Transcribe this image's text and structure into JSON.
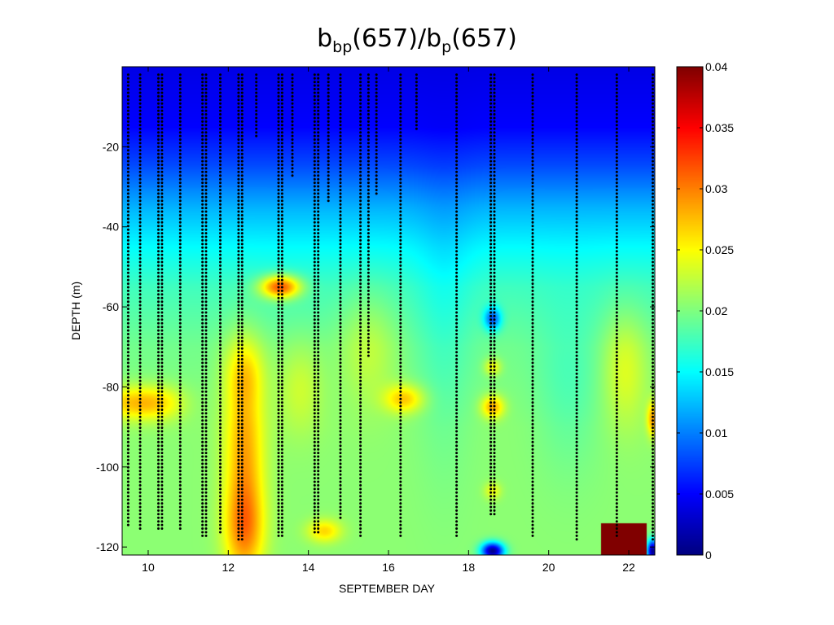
{
  "chart_data": {
    "type": "heatmap",
    "title_parts": {
      "p1": "b",
      "s1": "bp",
      "p2": "(657)/b",
      "s2": "p",
      "p3": "(657)"
    },
    "title": "b_bp(657)/b_p(657)",
    "xlabel": "SEPTEMBER DAY",
    "ylabel": "DEPTH (m)",
    "xlim": [
      9.35,
      22.65
    ],
    "ylim": [
      -122,
      0
    ],
    "x_ticks": [
      10,
      12,
      14,
      16,
      18,
      20,
      22
    ],
    "x_tick_labels": [
      "10",
      "12",
      "14",
      "16",
      "18",
      "20",
      "22"
    ],
    "y_ticks": [
      -20,
      -40,
      -60,
      -80,
      -100,
      -120
    ],
    "y_tick_labels": [
      "-20",
      "-40",
      "-60",
      "-80",
      "-100",
      "-120"
    ],
    "colorbar": {
      "colormap": "jet",
      "clim": [
        0,
        0.04
      ],
      "ticks": [
        0,
        0.005,
        0.01,
        0.015,
        0.02,
        0.025,
        0.03,
        0.035,
        0.04
      ],
      "tick_labels": [
        "0",
        "0.005",
        "0.01",
        "0.015",
        "0.02",
        "0.025",
        "0.03",
        "0.035",
        "0.04"
      ]
    },
    "surface_value": 0.004,
    "depth_profile": [
      {
        "depth": 0,
        "value": 0.004
      },
      {
        "depth": -15,
        "value": 0.005
      },
      {
        "depth": -25,
        "value": 0.008
      },
      {
        "depth": -35,
        "value": 0.012
      },
      {
        "depth": -45,
        "value": 0.015
      },
      {
        "depth": -55,
        "value": 0.0175
      },
      {
        "depth": -70,
        "value": 0.0195
      },
      {
        "depth": -90,
        "value": 0.0205
      },
      {
        "depth": -122,
        "value": 0.0205
      }
    ],
    "features": [
      {
        "day": 9.5,
        "depth": -84,
        "sx": 0.5,
        "sy": 3,
        "delta": 0.006
      },
      {
        "day": 10.3,
        "depth": -84,
        "sx": 0.45,
        "sy": 3,
        "delta": 0.005
      },
      {
        "day": 12.4,
        "depth": -96,
        "sx": 0.35,
        "sy": 16,
        "delta": 0.008
      },
      {
        "day": 12.4,
        "depth": -116,
        "sx": 0.35,
        "sy": 8,
        "delta": 0.007
      },
      {
        "day": 12.4,
        "depth": -76,
        "sx": 0.35,
        "sy": 6,
        "delta": 0.004
      },
      {
        "day": 13.3,
        "depth": -55,
        "sx": 0.35,
        "sy": 2,
        "delta": 0.014
      },
      {
        "day": 13.8,
        "depth": -80,
        "sx": 0.4,
        "sy": 8,
        "delta": 0.003
      },
      {
        "day": 14.4,
        "depth": -116,
        "sx": 0.3,
        "sy": 2,
        "delta": 0.006
      },
      {
        "day": 15.5,
        "depth": -70,
        "sx": 0.5,
        "sy": 10,
        "delta": 0.003
      },
      {
        "day": 16.4,
        "depth": -83,
        "sx": 0.35,
        "sy": 2.5,
        "delta": 0.007
      },
      {
        "day": 17.4,
        "depth": -65,
        "sx": 0.5,
        "sy": 25,
        "delta": -0.002
      },
      {
        "day": 18.6,
        "depth": -63,
        "sx": 0.15,
        "sy": 2,
        "delta": -0.01
      },
      {
        "day": 18.6,
        "depth": -85,
        "sx": 0.2,
        "sy": 2,
        "delta": 0.008
      },
      {
        "day": 18.6,
        "depth": -75,
        "sx": 0.15,
        "sy": 1.5,
        "delta": 0.005
      },
      {
        "day": 18.6,
        "depth": -106,
        "sx": 0.15,
        "sy": 1.5,
        "delta": 0.004
      },
      {
        "day": 18.6,
        "depth": -121,
        "sx": 0.2,
        "sy": 1.5,
        "delta": -0.02
      },
      {
        "day": 20.5,
        "depth": -80,
        "sx": 0.6,
        "sy": 15,
        "delta": -0.002
      },
      {
        "day": 21.9,
        "depth": -75,
        "sx": 0.4,
        "sy": 10,
        "delta": 0.004
      },
      {
        "day": 22.6,
        "depth": -88,
        "sx": 0.1,
        "sy": 3,
        "delta": 0.008
      },
      {
        "day": 22.6,
        "depth": -121,
        "sx": 0.1,
        "sy": 2,
        "delta": -0.02
      }
    ],
    "saturated_block": {
      "day_start": 21.3,
      "day_end": 22.45,
      "depth_top": -114,
      "depth_bottom": -122,
      "value": 0.04
    },
    "profiles": [
      {
        "day": 9.5,
        "depth_min": -115
      },
      {
        "day": 9.8,
        "depth_min": -116
      },
      {
        "day": 10.3,
        "depth_min": -116,
        "dense": true
      },
      {
        "day": 10.8,
        "depth_min": -116
      },
      {
        "day": 11.4,
        "depth_min": -118,
        "dense": true
      },
      {
        "day": 11.8,
        "depth_min": -117
      },
      {
        "day": 12.3,
        "depth_min": -119,
        "dense": true
      },
      {
        "day": 12.7,
        "depth_min": -18
      },
      {
        "day": 13.3,
        "depth_min": -118,
        "dense": true
      },
      {
        "day": 13.6,
        "depth_min": -28
      },
      {
        "day": 14.2,
        "depth_min": -117,
        "dense": true
      },
      {
        "day": 14.5,
        "depth_min": -34
      },
      {
        "day": 14.8,
        "depth_min": -113
      },
      {
        "day": 15.3,
        "depth_min": -118
      },
      {
        "day": 15.5,
        "depth_min": -73
      },
      {
        "day": 15.7,
        "depth_min": -32
      },
      {
        "day": 16.3,
        "depth_min": -118
      },
      {
        "day": 16.7,
        "depth_min": -16
      },
      {
        "day": 17.7,
        "depth_min": -118
      },
      {
        "day": 18.6,
        "depth_min": -112,
        "dense": true
      },
      {
        "day": 19.6,
        "depth_min": -118
      },
      {
        "day": 20.7,
        "depth_min": -119
      },
      {
        "day": 21.7,
        "depth_min": -118
      },
      {
        "day": 22.6,
        "depth_min": -119
      }
    ]
  }
}
